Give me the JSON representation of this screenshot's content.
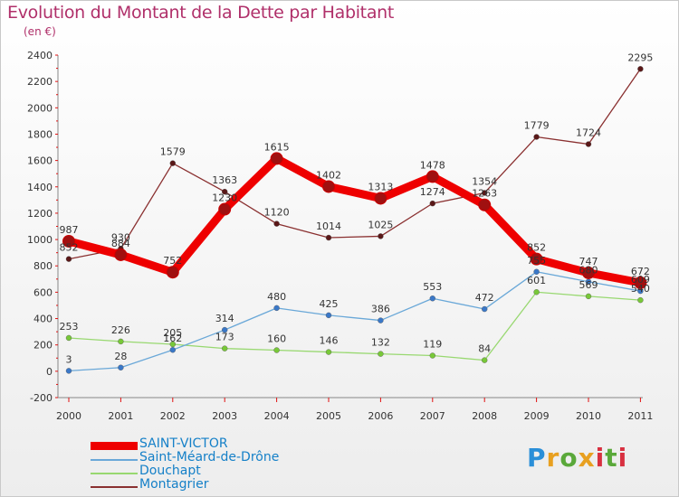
{
  "header": {
    "title": "Evolution du Montant de la Dette par Habitant",
    "unit": "(en €)"
  },
  "logo": {
    "text": "Proxiti",
    "colors": [
      "#2a8fd8",
      "#e8a020",
      "#5aa83a",
      "#d83040"
    ]
  },
  "chart_data": {
    "type": "line",
    "title": "Evolution du Montant de la Dette par Habitant",
    "subtitle": "(en €)",
    "xlabel": "",
    "ylabel": "",
    "categories": [
      "2000",
      "2001",
      "2002",
      "2003",
      "2004",
      "2005",
      "2006",
      "2007",
      "2008",
      "2009",
      "2010",
      "2011"
    ],
    "ylim": [
      -200,
      2400
    ],
    "yticks": [
      -200,
      0,
      200,
      400,
      600,
      800,
      1000,
      1200,
      1400,
      1600,
      1800,
      2000,
      2200,
      2400
    ],
    "grid": false,
    "legend_position": "bottom-left",
    "series": [
      {
        "name": "SAINT-VICTOR",
        "color": "#ee0000",
        "point_color": "#a01010",
        "emphasis": true,
        "values": [
          987,
          884,
          752,
          1230,
          1615,
          1402,
          1313,
          1478,
          1263,
          852,
          747,
          672
        ],
        "labels": [
          "987",
          "884",
          "752",
          "1230",
          "1615",
          "1402",
          "1313",
          "1478",
          "1263",
          "852",
          "747",
          "672"
        ]
      },
      {
        "name": "Saint-Méard-de-Drône",
        "color": "#6aa8d8",
        "point_color": "#3a78c8",
        "emphasis": false,
        "values": [
          3,
          28,
          162,
          314,
          480,
          425,
          386,
          553,
          472,
          755,
          680,
          609
        ],
        "labels": [
          "3",
          "28",
          "162",
          "314",
          "480",
          "425",
          "386",
          "553",
          "472",
          "755",
          "680",
          "609"
        ]
      },
      {
        "name": "Douchapt",
        "color": "#98d870",
        "point_color": "#78c838",
        "emphasis": false,
        "values": [
          253,
          226,
          205,
          173,
          160,
          146,
          132,
          119,
          84,
          601,
          569,
          540
        ],
        "labels": [
          "253",
          "226",
          "205",
          "173",
          "160",
          "146",
          "132",
          "119",
          "84",
          "601",
          "569",
          "540"
        ]
      },
      {
        "name": "Montagrier",
        "color": "#8a3030",
        "point_color": "#5a1818",
        "emphasis": false,
        "values": [
          852,
          930,
          1579,
          1363,
          1120,
          1014,
          1025,
          1274,
          1354,
          1779,
          1724,
          2295
        ],
        "labels": [
          "852",
          "930",
          "1579",
          "1363",
          "1120",
          "1014",
          "1025",
          "1274",
          "1354",
          "1779",
          "1724",
          "2295"
        ]
      }
    ]
  }
}
